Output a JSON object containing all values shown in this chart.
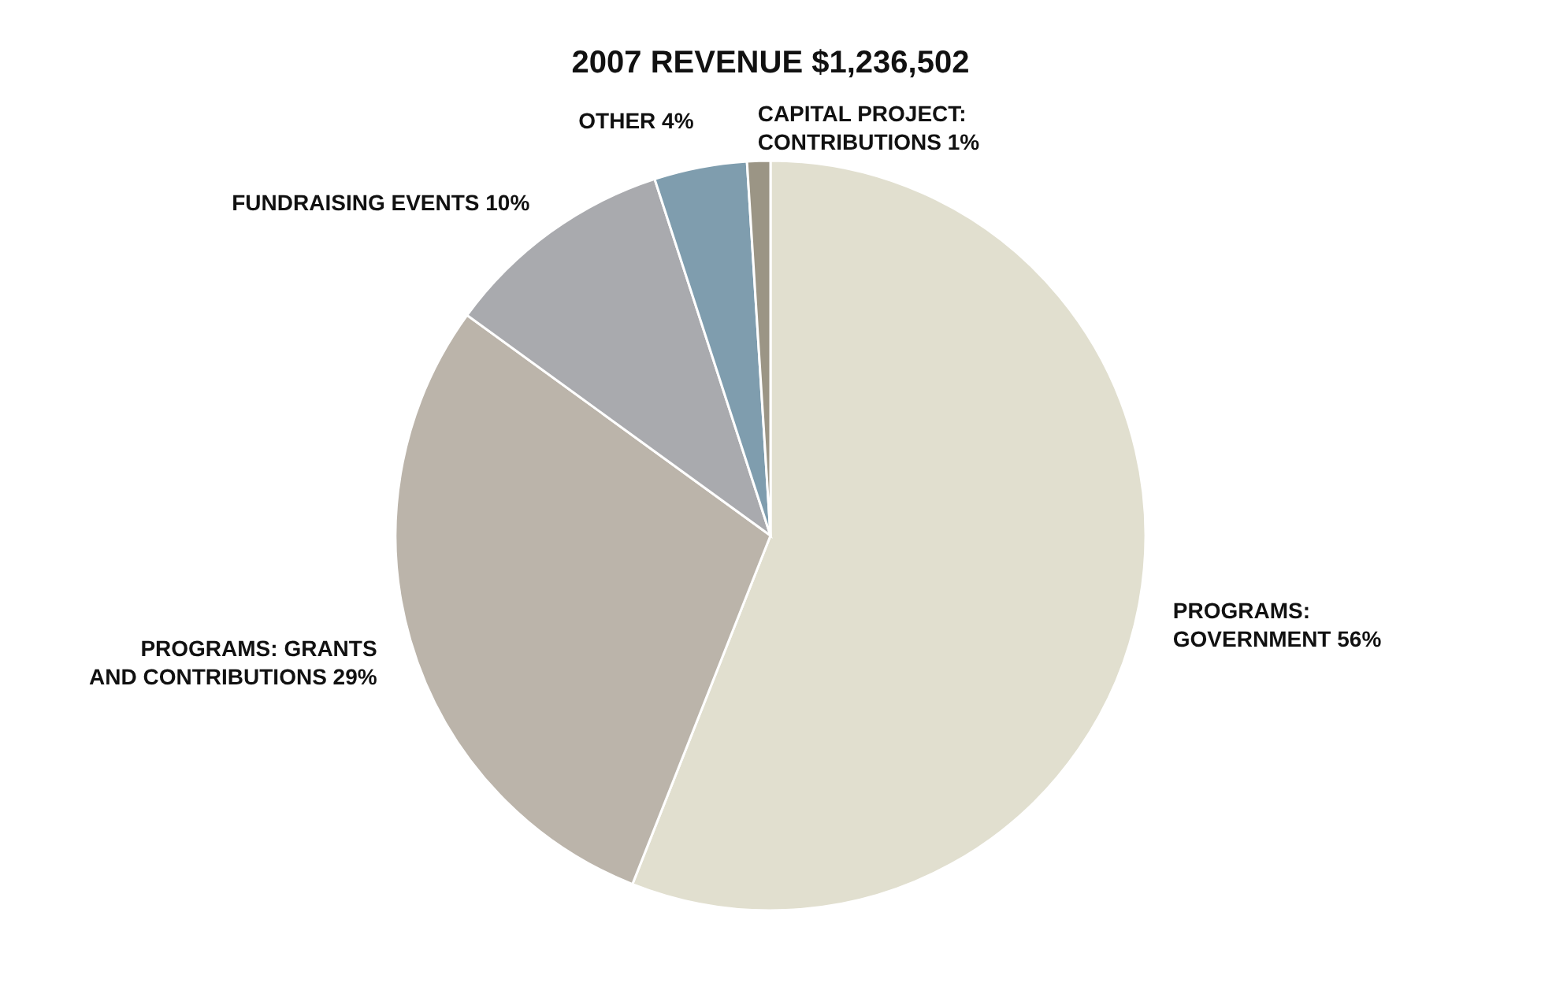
{
  "chart_data": {
    "type": "pie",
    "title": "2007 REVENUE $1,236,502",
    "categories": [
      "PROGRAMS: GOVERNMENT",
      "PROGRAMS: GRANTS AND CONTRIBUTIONS",
      "FUNDRAISING EVENTS",
      "OTHER",
      "CAPITAL PROJECT: CONTRIBUTIONS"
    ],
    "values": [
      56,
      29,
      10,
      4,
      1
    ],
    "value_labels": [
      "56%",
      "29%",
      "10%",
      "4%",
      "1%"
    ],
    "colors": [
      "#e1dfcf",
      "#bbb4aa",
      "#a9aaae",
      "#7f9dae",
      "#9b9585"
    ]
  }
}
